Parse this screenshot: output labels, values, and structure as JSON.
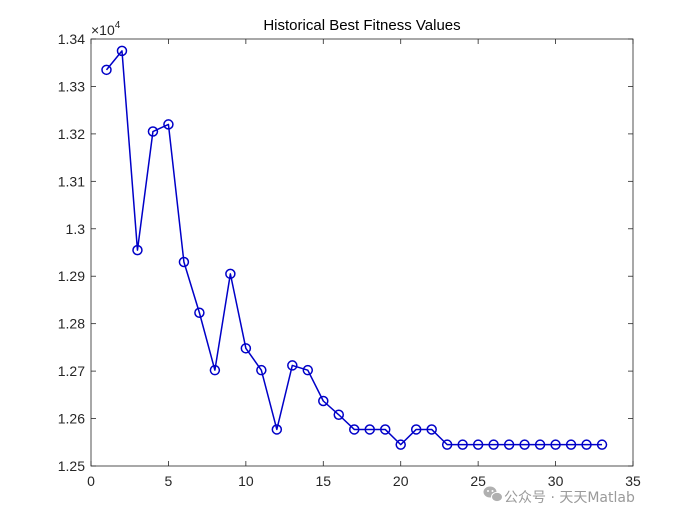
{
  "chart_data": {
    "type": "line",
    "title": "Historical Best Fitness Values",
    "xlabel": "",
    "ylabel": "",
    "y_exponent_base": "×10",
    "y_exponent_power": "4",
    "xlim": [
      0,
      35
    ],
    "ylim": [
      1.25,
      1.34
    ],
    "x_ticks": [
      0,
      5,
      10,
      15,
      20,
      25,
      30,
      35
    ],
    "x_tick_labels": [
      "0",
      "5",
      "10",
      "15",
      "20",
      "25",
      "30",
      "35"
    ],
    "y_ticks": [
      1.25,
      1.26,
      1.27,
      1.28,
      1.29,
      1.3,
      1.31,
      1.32,
      1.33,
      1.34
    ],
    "y_tick_labels": [
      "1.25",
      "1.26",
      "1.27",
      "1.28",
      "1.29",
      "1.3",
      "1.31",
      "1.32",
      "1.33",
      "1.34"
    ],
    "grid": false,
    "series": [
      {
        "color": "#0000C8",
        "marker": "circle",
        "x": [
          1,
          2,
          3,
          4,
          5,
          6,
          7,
          8,
          9,
          10,
          11,
          12,
          13,
          14,
          15,
          16,
          17,
          18,
          19,
          20,
          21,
          22,
          23,
          24,
          25,
          26,
          27,
          28,
          29,
          30,
          31,
          32,
          33
        ],
        "y": [
          1.3335,
          1.3375,
          1.2955,
          1.3205,
          1.322,
          1.293,
          1.2823,
          1.2702,
          1.2905,
          1.2748,
          1.2702,
          1.2577,
          1.2712,
          1.2702,
          1.2637,
          1.2608,
          1.2577,
          1.2577,
          1.2577,
          1.2545,
          1.2577,
          1.2577,
          1.2545,
          1.2545,
          1.2545,
          1.2545,
          1.2545,
          1.2545,
          1.2545,
          1.2545,
          1.2545,
          1.2545,
          1.2545
        ]
      }
    ]
  },
  "watermark": {
    "icon": "wechat-icon",
    "text": "公众号 · 天天Matlab"
  }
}
